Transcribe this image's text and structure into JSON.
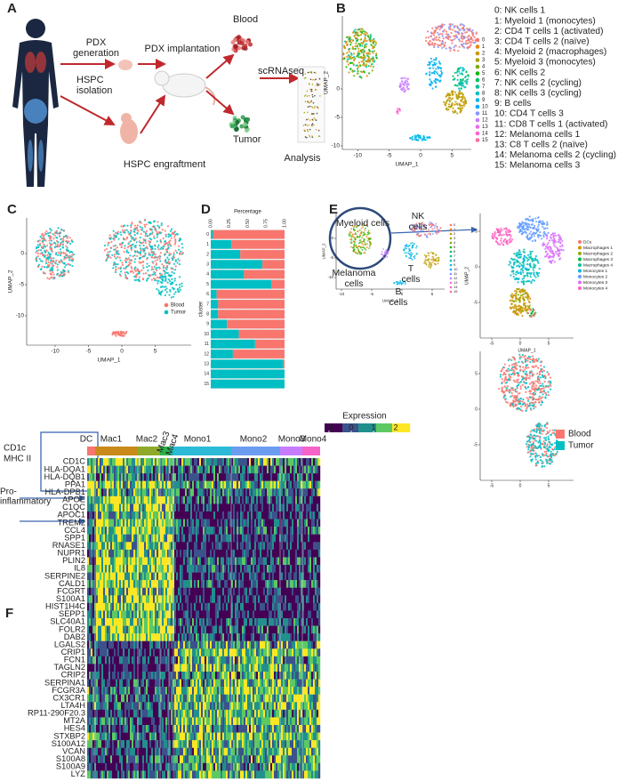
{
  "panel_a": {
    "label": "A",
    "pdx_generation": [
      "PDX",
      "generation"
    ],
    "pdx_implantation": "PDX implantation",
    "hspc_isolation": [
      "HSPC",
      "isolation"
    ],
    "hspc_engraftment": "HSPC engraftment",
    "blood": "Blood",
    "tumor": "Tumor",
    "scrnaseq": "scRNAseq",
    "analysis": "Analysis"
  },
  "panel_b": {
    "label": "B",
    "x_label": "UMAP_1",
    "y_label": "UMAP_2",
    "xticks": [
      -10,
      -5,
      0,
      5
    ],
    "yticks": [
      0,
      -5,
      -10
    ],
    "legend": [
      {
        "name": "0",
        "color": "#F8766D"
      },
      {
        "name": "1",
        "color": "#E68613"
      },
      {
        "name": "2",
        "color": "#CD9600"
      },
      {
        "name": "3",
        "color": "#ABA300"
      },
      {
        "name": "4",
        "color": "#7CAE00"
      },
      {
        "name": "5",
        "color": "#0CB702"
      },
      {
        "name": "6",
        "color": "#00BE67"
      },
      {
        "name": "7",
        "color": "#00C19A"
      },
      {
        "name": "8",
        "color": "#00BFC4"
      },
      {
        "name": "9",
        "color": "#00B8E7"
      },
      {
        "name": "10",
        "color": "#00A9FF"
      },
      {
        "name": "11",
        "color": "#8494FF"
      },
      {
        "name": "12",
        "color": "#C77CFF"
      },
      {
        "name": "13",
        "color": "#ED68ED"
      },
      {
        "name": "14",
        "color": "#FF61CC"
      },
      {
        "name": "15",
        "color": "#FF68A1"
      }
    ],
    "clusters": [
      "0: NK cells 1",
      "1: Myeloid 1 (monocytes)",
      "2: CD4 T cells 1 (activated)",
      "3: CD4 T cells 2 (naïve)",
      "4: Myeloid 2 (macrophages)",
      "5: Myeloid 3 (monocytes)",
      "6: NK cells 2",
      "7: NK cells 2 (cycling)",
      "8: NK cells 3 (cycling)",
      "9: B cells",
      "10: CD4 T cells 3",
      "11: CD8 T cells 1 (activated)",
      "12: Melanoma cells 1",
      "13: C8 T cells 2 (naïve)",
      "14: Melanoma cells 2 (cycling)",
      "15: Melanoma cells 3"
    ]
  },
  "panel_c": {
    "label": "C",
    "x_label": "UMAP_1",
    "y_label": "UMAP_2",
    "xticks": [
      -10,
      -5,
      0,
      5
    ],
    "yticks": [
      0,
      -5,
      -10
    ],
    "legend": [
      {
        "name": "Blood",
        "color": "#F8766D"
      },
      {
        "name": "Tumor",
        "color": "#00BFC4"
      }
    ]
  },
  "panel_d": {
    "label": "D",
    "type": "bar",
    "x_label": "Percentage",
    "y_label": "cluster",
    "categories": [
      "0",
      "1",
      "2",
      "3",
      "4",
      "5",
      "6",
      "7",
      "8",
      "9",
      "10",
      "11",
      "12",
      "13",
      "14",
      "15"
    ],
    "xlim": [
      0,
      1
    ],
    "xticks": [
      {
        "value": 0,
        "label": "0.00"
      },
      {
        "value": 0.25,
        "label": "0.25"
      },
      {
        "value": 0.5,
        "label": "0.50"
      },
      {
        "value": 0.75,
        "label": "0.75"
      },
      {
        "value": 1,
        "label": "1.00"
      }
    ],
    "series": [
      {
        "color": "#00BFC4",
        "values": [
          0.03,
          0.28,
          0.4,
          0.7,
          0.45,
          0.82,
          0.08,
          0.1,
          0.1,
          0.22,
          0.38,
          0.6,
          0.3,
          0.98,
          1,
          1
        ]
      },
      {
        "color": "#F8766D",
        "values": [
          0.97,
          0.72,
          0.6,
          0.3,
          0.55,
          0.18,
          0.92,
          0.9,
          0.9,
          0.78,
          0.62,
          0.4,
          0.7,
          0.02,
          0,
          0
        ]
      }
    ]
  },
  "panel_e": {
    "label": "E",
    "myeloid": "Myeloid cells",
    "nk": [
      "NK",
      "cells"
    ],
    "t": [
      "T",
      "cells"
    ],
    "melanoma": [
      "Melanoma",
      "cells"
    ],
    "b": [
      "B",
      "cells"
    ],
    "small": {
      "x_label": "UMAP_1",
      "y_label": "UMAP_2",
      "xticks": [
        -10,
        -5,
        0,
        5
      ],
      "yticks": [
        0,
        -5,
        -10
      ],
      "legend": [
        "0",
        "1",
        "2",
        "3",
        "4",
        "5",
        "6",
        "7",
        "8",
        "9",
        "10",
        "11",
        "12",
        "13",
        "14",
        "15"
      ]
    },
    "zoom": {
      "x_label": "UMAP_1",
      "y_label": "UMAP_2",
      "xticks": [
        -5,
        0,
        5
      ],
      "yticks": [
        5,
        0,
        -5
      ],
      "legend": [
        {
          "name": "DCs",
          "color": "#F8766D"
        },
        {
          "name": "Macrophages 1",
          "color": "#D39200"
        },
        {
          "name": "Macrophages 2",
          "color": "#93AA00"
        },
        {
          "name": "Macrophages 3",
          "color": "#00BA38"
        },
        {
          "name": "Macrophages 4",
          "color": "#00C19F"
        },
        {
          "name": "Monocytes 1",
          "color": "#00B9E3"
        },
        {
          "name": "Monocytes 2",
          "color": "#619CFF"
        },
        {
          "name": "Monocytes 3",
          "color": "#DB72FB"
        },
        {
          "name": "Monocytes 4",
          "color": "#FF61C3"
        }
      ]
    },
    "origin": {
      "xticks": [
        -5,
        0,
        5
      ],
      "yticks": [
        5,
        0,
        -5
      ],
      "legend": [
        {
          "name": "Blood",
          "color": "#F8766D"
        },
        {
          "name": "Tumor",
          "color": "#00BFC4"
        }
      ]
    }
  },
  "panel_f": {
    "label": "F",
    "colorbar": {
      "title": "Expression",
      "ticks": [
        -1,
        0,
        1,
        2
      ],
      "colors": [
        "#440154",
        "#3b528b",
        "#21908d",
        "#5dc963",
        "#fde725"
      ]
    },
    "clusters": [
      {
        "name": "DC",
        "color": "#F8766D"
      },
      {
        "name": "Mac1",
        "color": "#C98A1A"
      },
      {
        "name": "Mac2",
        "color": "#8FAA2A"
      },
      {
        "name": "Mac3",
        "color": "#2DB24A"
      },
      {
        "name": "Mac4",
        "color": "#22B8A0"
      },
      {
        "name": "Mono1",
        "color": "#2BBBD8"
      },
      {
        "name": "Mono2",
        "color": "#6C9CF0"
      },
      {
        "name": "Mono3",
        "color": "#C77CFF"
      },
      {
        "name": "Mono4",
        "color": "#F563C8"
      }
    ],
    "genes": [
      "CD1C",
      "HLA-DQA1",
      "HLA-DQB1",
      "PPA1",
      "HLA-DPB1",
      "APOE",
      "C1QC",
      "APOC1",
      "TREM2",
      "CCL4",
      "SPP1",
      "RNASE1",
      "NUPR1",
      "PLIN2",
      "IL8",
      "SERPINE2",
      "CALD1",
      "FCGRT",
      "S100A1",
      "HIST1H4C",
      "SEPP1",
      "SLC40A1",
      "FOLR2",
      "DAB2",
      "LGALS2",
      "CRIP1",
      "FCN1",
      "TAGLN2",
      "CRIP2",
      "SERPINA1",
      "FCGR3A",
      "CX3CR1",
      "LTA4H",
      "RP11-290F20.3",
      "MT2A",
      "HES4",
      "STXBP2",
      "S100A12",
      "VCAN",
      "S100A8",
      "S100A9",
      "LYZ"
    ],
    "cd1c_mhc": [
      "CD1c",
      "MHC II"
    ],
    "pro_inflammatory": [
      "Pro-",
      "inflammatory"
    ]
  }
}
